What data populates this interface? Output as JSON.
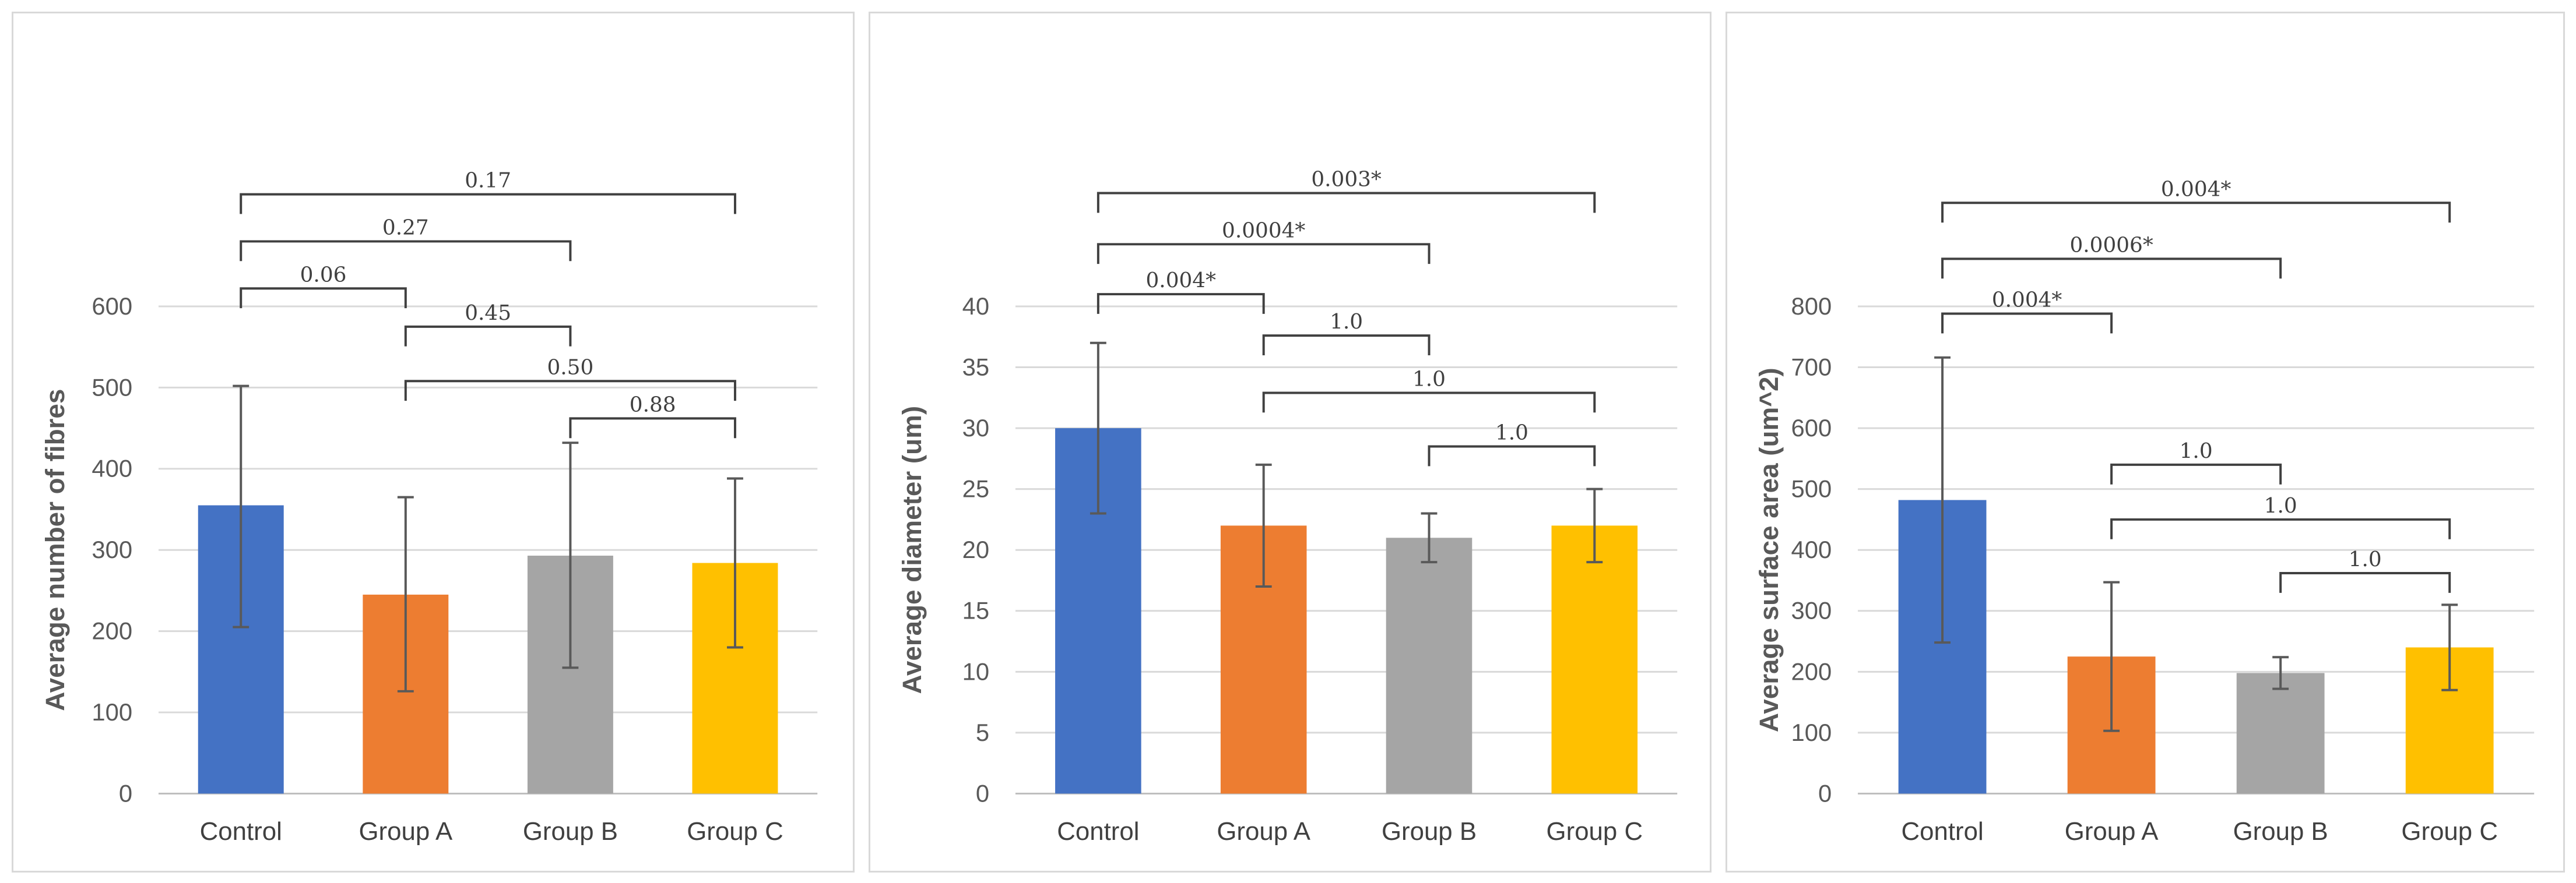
{
  "colors": {
    "control": "#4472c4",
    "group_a": "#ed7d31",
    "group_b": "#a5a5a5",
    "group_c": "#ffc000"
  },
  "chart_data": [
    {
      "type": "bar",
      "title": "",
      "xlabel": "",
      "ylabel": "Average number of fibres",
      "ylim": [
        0,
        600
      ],
      "yticks": [
        0,
        100,
        200,
        300,
        400,
        500,
        600
      ],
      "categories": [
        "Control",
        "Group A",
        "Group B",
        "Group C"
      ],
      "values": [
        355,
        245,
        293,
        284
      ],
      "error_low": [
        205,
        126,
        155,
        180
      ],
      "error_high": [
        502,
        365,
        432,
        388
      ],
      "comparisons": [
        {
          "from": 0,
          "to": 3,
          "y": 738,
          "label": "0.17"
        },
        {
          "from": 0,
          "to": 2,
          "y": 680,
          "label": "0.27"
        },
        {
          "from": 0,
          "to": 1,
          "y": 622,
          "label": "0.06"
        },
        {
          "from": 1,
          "to": 2,
          "y": 575,
          "label": "0.45"
        },
        {
          "from": 1,
          "to": 3,
          "y": 508,
          "label": "0.50"
        },
        {
          "from": 2,
          "to": 3,
          "y": 462,
          "label": "0.88"
        }
      ]
    },
    {
      "type": "bar",
      "title": "",
      "xlabel": "",
      "ylabel": "Average diameter (um)",
      "ylim": [
        0,
        40
      ],
      "yticks": [
        0,
        5,
        10,
        15,
        20,
        25,
        30,
        35,
        40
      ],
      "categories": [
        "Control",
        "Group A",
        "Group B",
        "Group C"
      ],
      "values": [
        30,
        22,
        21,
        22
      ],
      "error_low": [
        23,
        17,
        19,
        19
      ],
      "error_high": [
        37,
        27,
        23,
        25
      ],
      "comparisons": [
        {
          "from": 0,
          "to": 3,
          "y": 49.3,
          "label": "0.003*"
        },
        {
          "from": 0,
          "to": 2,
          "y": 45.1,
          "label": "0.0004*"
        },
        {
          "from": 0,
          "to": 1,
          "y": 41.0,
          "label": "0.004*"
        },
        {
          "from": 1,
          "to": 2,
          "y": 37.6,
          "label": "1.0"
        },
        {
          "from": 1,
          "to": 3,
          "y": 32.9,
          "label": "1.0"
        },
        {
          "from": 2,
          "to": 3,
          "y": 28.5,
          "label": "1.0"
        }
      ]
    },
    {
      "type": "bar",
      "title": "",
      "xlabel": "",
      "ylabel": "Average surface area (um^2)",
      "ylim": [
        0,
        800
      ],
      "yticks": [
        0,
        100,
        200,
        300,
        400,
        500,
        600,
        700,
        800
      ],
      "categories": [
        "Control",
        "Group A",
        "Group B",
        "Group C"
      ],
      "values": [
        482,
        225,
        198,
        240
      ],
      "error_low": [
        248,
        103,
        172,
        170
      ],
      "error_high": [
        716,
        347,
        224,
        310
      ],
      "comparisons": [
        {
          "from": 0,
          "to": 3,
          "y": 970,
          "label": "0.004*"
        },
        {
          "from": 0,
          "to": 2,
          "y": 878,
          "label": "0.0006*"
        },
        {
          "from": 0,
          "to": 1,
          "y": 788,
          "label": "0.004*"
        },
        {
          "from": 1,
          "to": 2,
          "y": 540,
          "label": "1.0"
        },
        {
          "from": 1,
          "to": 3,
          "y": 450,
          "label": "1.0"
        },
        {
          "from": 2,
          "to": 3,
          "y": 362,
          "label": "1.0"
        }
      ]
    }
  ]
}
